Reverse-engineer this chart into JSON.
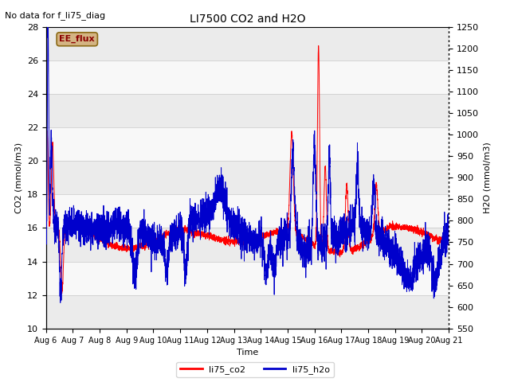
{
  "title": "LI7500 CO2 and H2O",
  "subtitle": "No data for f_li75_diag",
  "xlabel": "Time",
  "ylabel_left": "CO2 (mmol/m3)",
  "ylabel_right": "H2O (mmol/m3)",
  "ylim_left": [
    10,
    28
  ],
  "ylim_right": [
    550,
    1250
  ],
  "yticks_left": [
    10,
    12,
    14,
    16,
    18,
    20,
    22,
    24,
    26,
    28
  ],
  "yticks_right": [
    550,
    600,
    650,
    700,
    750,
    800,
    850,
    900,
    950,
    1000,
    1050,
    1100,
    1150,
    1200,
    1250
  ],
  "xtick_labels": [
    "Aug 6",
    "Aug 7",
    "Aug 8",
    "Aug 9",
    "Aug 10",
    "Aug 11",
    "Aug 12",
    "Aug 13",
    "Aug 14",
    "Aug 15",
    "Aug 16",
    "Aug 17",
    "Aug 18",
    "Aug 19",
    "Aug 20",
    "Aug 21"
  ],
  "color_co2": "#ff0000",
  "color_h2o": "#0000cc",
  "legend_label_co2": "li75_co2",
  "legend_label_h2o": "li75_h2o",
  "shaded_region_label": "EE_flux",
  "background_color": "#ffffff",
  "band_color_light": "#ebebeb",
  "band_color_white": "#f8f8f8",
  "ee_flux_bg": "#d4b483",
  "ee_flux_text": "#8b0000",
  "ee_flux_edge": "#8b6914"
}
